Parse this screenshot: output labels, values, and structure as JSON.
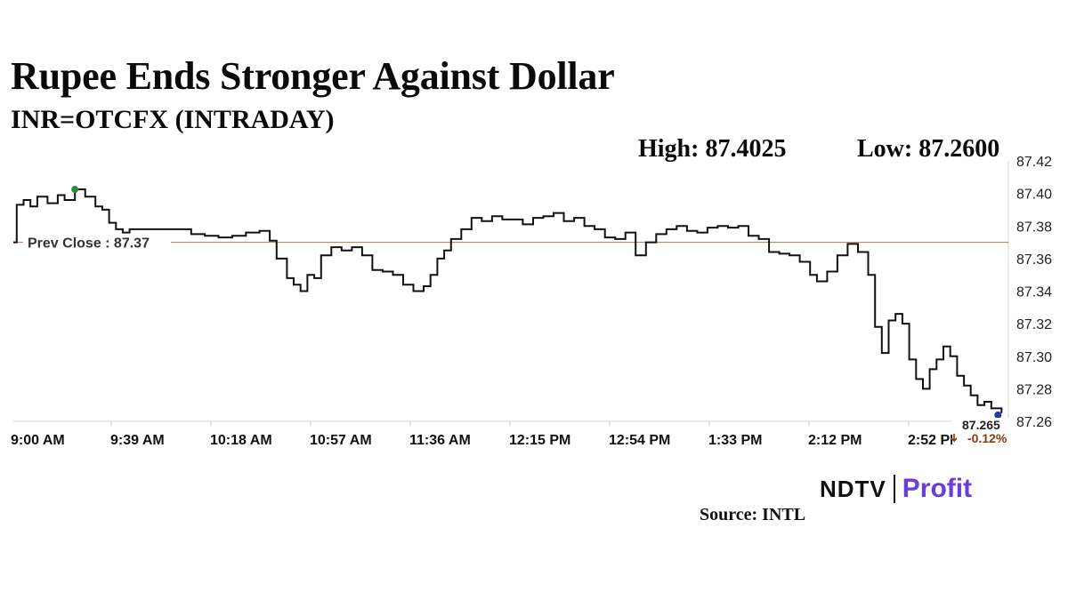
{
  "header": {
    "title": "Rupee Ends Stronger Against Dollar",
    "subtitle": "INR=OTCFX (INTRADAY)",
    "high_text": "High: 87.4025",
    "low_text": "Low: 87.2600"
  },
  "chart_data": {
    "type": "line",
    "title": "Rupee Ends Stronger Against Dollar",
    "subtitle": "INR=OTCFX (INTRADAY)",
    "high": 87.4025,
    "low": 87.26,
    "ylim": [
      87.26,
      87.42
    ],
    "y_ticks": [
      "87.42",
      "87.40",
      "87.38",
      "87.36",
      "87.34",
      "87.32",
      "87.30",
      "87.28",
      "87.26"
    ],
    "x_ticks": [
      "9:00 AM",
      "9:39 AM",
      "10:18 AM",
      "10:57 AM",
      "11:36 AM",
      "12:15 PM",
      "12:54 PM",
      "1:33 PM",
      "2:12 PM",
      "2:52 PM"
    ],
    "prev_close": 87.37,
    "prev_close_label": "Prev Close : 87.37",
    "last_value_label": "87.265",
    "change_label": "-0.12%",
    "colors": {
      "line": "#111111",
      "prev_close_line": "#b07a50",
      "high_marker": "#2e8b3a",
      "last_marker": "#1f3aa8",
      "change": "#8a3a14"
    },
    "series": [
      {
        "values": [
          [
            0,
            87.37
          ],
          [
            1,
            87.393
          ],
          [
            3,
            87.396
          ],
          [
            5,
            87.392
          ],
          [
            7,
            87.398
          ],
          [
            10,
            87.394
          ],
          [
            13,
            87.399
          ],
          [
            15,
            87.396
          ],
          [
            18,
            87.4025
          ],
          [
            21,
            87.398
          ],
          [
            24,
            87.392
          ],
          [
            26,
            87.39
          ],
          [
            28,
            87.382
          ],
          [
            30,
            87.378
          ],
          [
            32,
            87.376
          ],
          [
            34,
            87.378
          ],
          [
            40,
            87.378
          ],
          [
            45,
            87.378
          ],
          [
            48,
            87.378
          ],
          [
            52,
            87.375
          ],
          [
            56,
            87.374
          ],
          [
            60,
            87.373
          ],
          [
            64,
            87.374
          ],
          [
            68,
            87.376
          ],
          [
            72,
            87.377
          ],
          [
            75,
            87.371
          ],
          [
            77,
            87.36
          ],
          [
            80,
            87.348
          ],
          [
            82,
            87.344
          ],
          [
            84,
            87.34
          ],
          [
            86,
            87.35
          ],
          [
            88,
            87.348
          ],
          [
            90,
            87.362
          ],
          [
            93,
            87.367
          ],
          [
            96,
            87.365
          ],
          [
            99,
            87.367
          ],
          [
            102,
            87.362
          ],
          [
            105,
            87.353
          ],
          [
            108,
            87.352
          ],
          [
            111,
            87.35
          ],
          [
            114,
            87.344
          ],
          [
            117,
            87.34
          ],
          [
            120,
            87.343
          ],
          [
            122,
            87.35
          ],
          [
            124,
            87.36
          ],
          [
            126,
            87.365
          ],
          [
            128,
            87.372
          ],
          [
            131,
            87.378
          ],
          [
            134,
            87.385
          ],
          [
            137,
            87.383
          ],
          [
            140,
            87.386
          ],
          [
            143,
            87.384
          ],
          [
            146,
            87.384
          ],
          [
            149,
            87.381
          ],
          [
            152,
            87.385
          ],
          [
            155,
            87.386
          ],
          [
            158,
            87.388
          ],
          [
            161,
            87.383
          ],
          [
            164,
            87.385
          ],
          [
            167,
            87.38
          ],
          [
            170,
            87.378
          ],
          [
            173,
            87.373
          ],
          [
            176,
            87.372
          ],
          [
            179,
            87.376
          ],
          [
            182,
            87.362
          ],
          [
            185,
            87.37
          ],
          [
            188,
            87.375
          ],
          [
            191,
            87.378
          ],
          [
            194,
            87.38
          ],
          [
            197,
            87.377
          ],
          [
            200,
            87.376
          ],
          [
            203,
            87.379
          ],
          [
            206,
            87.38
          ],
          [
            209,
            87.379
          ],
          [
            212,
            87.38
          ],
          [
            215,
            87.374
          ],
          [
            218,
            87.372
          ],
          [
            221,
            87.364
          ],
          [
            224,
            87.363
          ],
          [
            227,
            87.362
          ],
          [
            230,
            87.358
          ],
          [
            233,
            87.35
          ],
          [
            235,
            87.346
          ],
          [
            238,
            87.352
          ],
          [
            241,
            87.362
          ],
          [
            244,
            87.369
          ],
          [
            247,
            87.364
          ],
          [
            250,
            87.35
          ],
          [
            252,
            87.318
          ],
          [
            254,
            87.302
          ],
          [
            256,
            87.322
          ],
          [
            258,
            87.326
          ],
          [
            260,
            87.32
          ],
          [
            262,
            87.298
          ],
          [
            264,
            87.286
          ],
          [
            266,
            87.28
          ],
          [
            268,
            87.292
          ],
          [
            270,
            87.298
          ],
          [
            272,
            87.306
          ],
          [
            274,
            87.3
          ],
          [
            276,
            87.288
          ],
          [
            278,
            87.282
          ],
          [
            280,
            87.276
          ],
          [
            282,
            87.27
          ],
          [
            284,
            87.272
          ],
          [
            286,
            87.268
          ],
          [
            289,
            87.265
          ]
        ]
      }
    ]
  },
  "branding": {
    "logo_ndtv": "NDTV",
    "logo_profit": "Profit",
    "source": "Source: INTL"
  }
}
